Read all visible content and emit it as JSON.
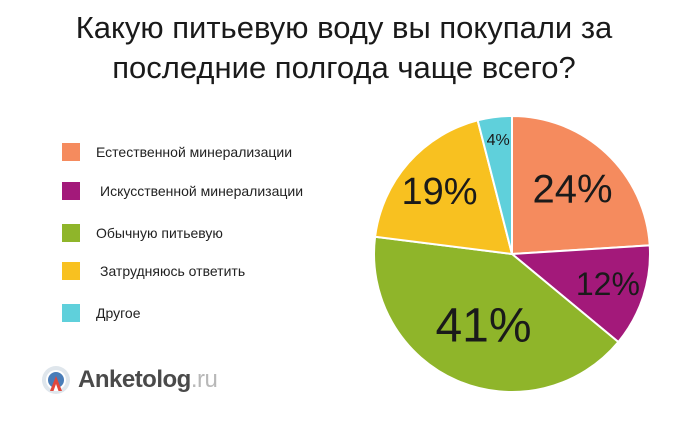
{
  "title_line_1": "Какую питьевую воду вы покупали за",
  "title_line_2": "последние полгода чаще всего?",
  "logo": {
    "name": "Anketolog",
    "domain": ".ru"
  },
  "chart_data": {
    "type": "pie",
    "title": "Какую питьевую воду вы покупали за последние полгода чаще всего?",
    "unit": "%",
    "legend_position": "left",
    "start": "12 o'clock, clockwise",
    "slices": [
      {
        "label": "Естественной минерализации",
        "value": 24,
        "display": "24%",
        "color": "#f58b5e"
      },
      {
        "label": "Искусственной минерализации",
        "value": 12,
        "display": "12%",
        "color": "#a3197a"
      },
      {
        "label": "Обычную питьевую",
        "value": 41,
        "display": "41%",
        "color": "#8fb52a"
      },
      {
        "label": "Затрудняюсь ответить",
        "value": 19,
        "display": "19%",
        "color": "#f8c120"
      },
      {
        "label": "Другое",
        "value": 4,
        "display": "4%",
        "color": "#5fd0db"
      }
    ]
  }
}
